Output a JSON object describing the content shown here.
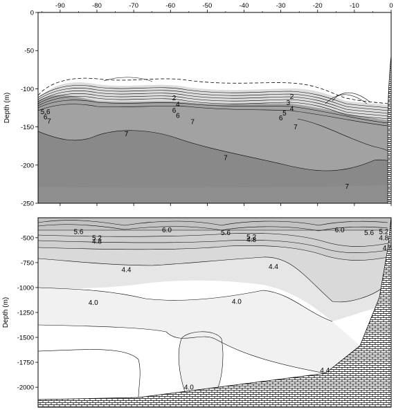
{
  "chart_data": [
    {
      "type": "contour",
      "panel": "upper",
      "x_ticks": [
        -90,
        -80,
        -70,
        -60,
        -50,
        -40,
        -30,
        -20,
        -10,
        0
      ],
      "y_ticks": [
        0,
        -50,
        -100,
        -150,
        -200,
        -250
      ],
      "ylabel": "Depth (m)",
      "xlim": [
        -96,
        0
      ],
      "ylim": [
        -250,
        0
      ],
      "grid": false,
      "colors": {
        "upper_layer": "#c8c8c8",
        "mid_layer": "#9a9a9a",
        "deep_layer": "#858585",
        "bottom_layer": "#8c8c8c",
        "topography": "#ffffff"
      },
      "contour_labels": [
        {
          "text": "5.6",
          "x": -94,
          "y": -130
        },
        {
          "text": "6",
          "x": -94,
          "y": -137
        },
        {
          "text": "7",
          "x": -93,
          "y": -142
        },
        {
          "text": "2",
          "x": -59,
          "y": -112
        },
        {
          "text": "4",
          "x": -58,
          "y": -120
        },
        {
          "text": "6",
          "x": -59,
          "y": -128
        },
        {
          "text": "6",
          "x": -58,
          "y": -135
        },
        {
          "text": "7",
          "x": -54,
          "y": -143
        },
        {
          "text": "7",
          "x": -72,
          "y": -159
        },
        {
          "text": "2",
          "x": -27,
          "y": -110
        },
        {
          "text": "3",
          "x": -28,
          "y": -118
        },
        {
          "text": "4",
          "x": -27,
          "y": -126
        },
        {
          "text": "5",
          "x": -29,
          "y": -132
        },
        {
          "text": "6",
          "x": -30,
          "y": -138
        },
        {
          "text": "7",
          "x": -26,
          "y": -150
        },
        {
          "text": "7",
          "x": -45,
          "y": -190
        },
        {
          "text": "7",
          "x": -12,
          "y": -228
        }
      ]
    },
    {
      "type": "contour",
      "panel": "lower",
      "y_ticks": [
        -500,
        -750,
        -1000,
        -1250,
        -1500,
        -1750,
        -2000
      ],
      "ylabel": "Depth (m)",
      "xlim": [
        -96,
        0
      ],
      "ylim": [
        -2200,
        -300
      ],
      "grid": false,
      "colors": {
        "band_top": "#cfcfcf",
        "band_mid": "#dcdcdc",
        "band_low": "#ebebeb",
        "band_deep": "#f3f3f3",
        "bottom": "#ffffff"
      },
      "contour_labels": [
        {
          "text": "5.6",
          "x": -85,
          "y": -440
        },
        {
          "text": "6.0",
          "x": -61,
          "y": -420
        },
        {
          "text": "5.6",
          "x": -45,
          "y": -450
        },
        {
          "text": "5.2",
          "x": -38,
          "y": -490
        },
        {
          "text": "4.8",
          "x": -38,
          "y": -520
        },
        {
          "text": "6.0",
          "x": -14,
          "y": -420
        },
        {
          "text": "5.6",
          "x": -6,
          "y": -450
        },
        {
          "text": "5.2",
          "x": -2,
          "y": -440
        },
        {
          "text": "4.8",
          "x": -2,
          "y": -500
        },
        {
          "text": "4.4",
          "x": -1,
          "y": -600
        },
        {
          "text": "5.2",
          "x": -80,
          "y": -500
        },
        {
          "text": "4.8",
          "x": -80,
          "y": -535
        },
        {
          "text": "4.4",
          "x": -72,
          "y": -820
        },
        {
          "text": "4.4",
          "x": -32,
          "y": -790
        },
        {
          "text": "4.0",
          "x": -81,
          "y": -1150
        },
        {
          "text": "4.0",
          "x": -42,
          "y": -1140
        },
        {
          "text": "4.0",
          "x": -55,
          "y": -2000
        },
        {
          "text": "4.4",
          "x": -18,
          "y": -1830
        }
      ]
    }
  ]
}
